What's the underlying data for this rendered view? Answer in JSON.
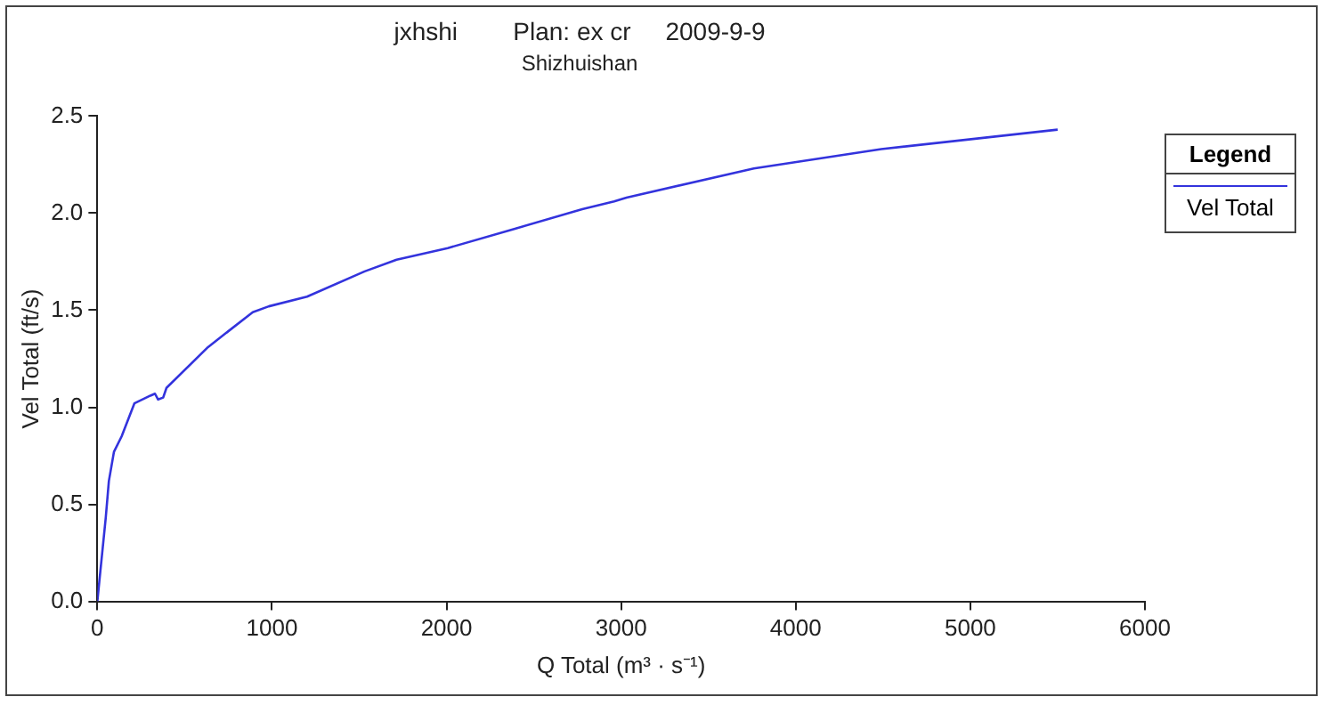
{
  "chart_data": {
    "type": "line",
    "title": "jxhshi        Plan: ex cr     2009-9-9",
    "subtitle": "Shizhuishan",
    "xlabel": "Q Total (m³ · s⁻¹)",
    "ylabel": "Vel Total (ft/s)",
    "legend_title": "Legend",
    "legend": "top right",
    "grid": false,
    "marker": "none",
    "line_style": "solid",
    "xlim": [
      0,
      6000
    ],
    "xticks": [
      0,
      1000,
      2000,
      3000,
      4000,
      5000,
      6000
    ],
    "ylim": [
      0,
      2.5
    ],
    "yticks": [
      {
        "value": 0,
        "label": "0.0"
      },
      {
        "value": 0.5,
        "label": "0.5"
      },
      {
        "value": 1,
        "label": "1.0"
      },
      {
        "value": 1.5,
        "label": "1.5"
      },
      {
        "value": 2,
        "label": "2.0"
      },
      {
        "value": 2.5,
        "label": "2.5"
      }
    ],
    "x": [
      0,
      11,
      48,
      66,
      95,
      139,
      212,
      304,
      330,
      348,
      377,
      396,
      634,
      890,
      982,
      1201,
      1531,
      1714,
      2007,
      2392,
      2777,
      2960,
      3031,
      3760,
      4490,
      5500
    ],
    "series": [
      {
        "name": "Vel Total",
        "color": "#3333dd",
        "values": [
          0,
          0.1,
          0.43,
          0.62,
          0.77,
          0.85,
          1.02,
          1.06,
          1.07,
          1.04,
          1.05,
          1.1,
          1.31,
          1.49,
          1.52,
          1.57,
          1.7,
          1.76,
          1.82,
          1.92,
          2.02,
          2.06,
          2.08,
          2.23,
          2.33,
          2.43
        ]
      }
    ]
  }
}
